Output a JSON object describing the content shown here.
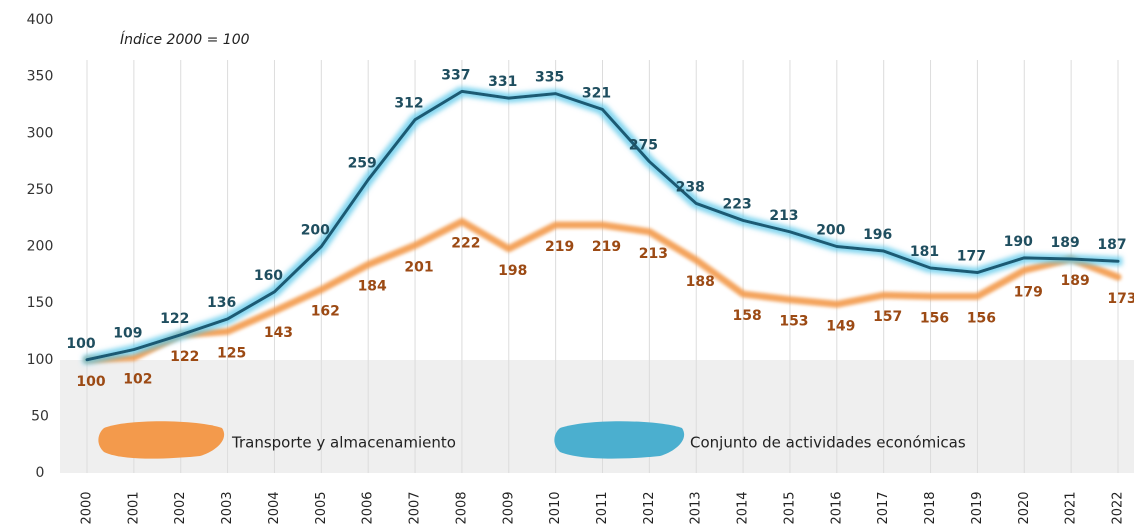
{
  "chart_data": {
    "type": "line",
    "annotation": "Índice 2000 = 100",
    "categories": [
      "2000",
      "2001",
      "2002",
      "2003",
      "2004",
      "2005",
      "2006",
      "2007",
      "2008",
      "2009",
      "2010",
      "2011",
      "2012",
      "2013",
      "2014",
      "2015",
      "2016",
      "2017",
      "2018",
      "2019",
      "2020",
      "2021",
      "2022"
    ],
    "series": [
      {
        "name": "Conjunto de actividades económicas",
        "color": "#1c5a73",
        "values": [
          100,
          109,
          122,
          136,
          160,
          200,
          259,
          312,
          337,
          331,
          335,
          321,
          275,
          238,
          223,
          213,
          200,
          196,
          181,
          177,
          190,
          189,
          187
        ]
      },
      {
        "name": "Transporte y almacenamiento",
        "color": "#f39a4c",
        "values": [
          100,
          102,
          122,
          125,
          143,
          162,
          184,
          201,
          222,
          198,
          219,
          219,
          213,
          188,
          158,
          153,
          149,
          157,
          156,
          156,
          179,
          189,
          173
        ]
      }
    ],
    "ylim": [
      0,
      400
    ],
    "yticks": [
      0,
      50,
      100,
      150,
      200,
      250,
      300,
      350,
      400
    ]
  }
}
